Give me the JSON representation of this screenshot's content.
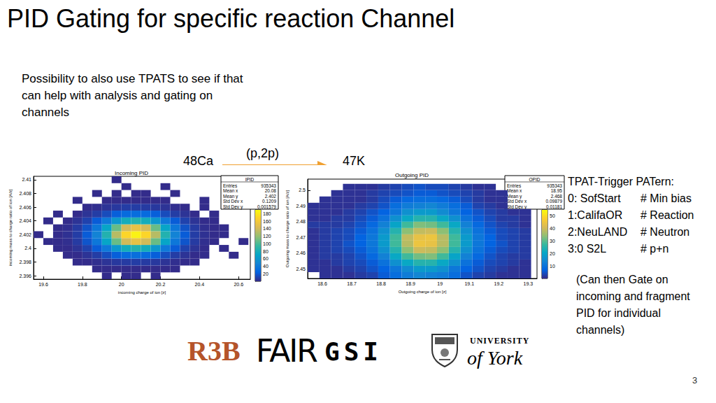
{
  "slide": {
    "title": "PID Gating for specific reaction Channel",
    "note_lines": [
      "Possibility to also use TPATS to see if that",
      "can help with analysis and gating on",
      "channels"
    ],
    "reaction": {
      "from": "48Ca",
      "label": "(p,2p)",
      "to": "47K"
    },
    "tpat": {
      "heading": "TPAT-Trigger PATern:",
      "items": [
        {
          "code": "0: SofStart",
          "comment": "# Min bias"
        },
        {
          "code": "1:CalifaOR",
          "comment": "# Reaction"
        },
        {
          "code": "2:NeuLAND",
          "comment": "# Neutron"
        },
        {
          "code": "3:0 S2L",
          "comment": "# p+n"
        }
      ]
    },
    "gating_note_lines": [
      "(Can then Gate on",
      "incoming and fragment",
      "PID for individual",
      "channels)"
    ],
    "logos": {
      "r3b": "R3B",
      "fair": "FAIR",
      "gsi": "GSI",
      "university": "UNIVERSITY",
      "york": "of York"
    },
    "page_number": 3
  },
  "chart_data": [
    {
      "type": "heatmap",
      "title": "Incoming PID",
      "x_label": "incoming charge of ion [z]",
      "y_label": "incoming mass to charge ratio of ion [A/z]",
      "xlim": [
        19.55,
        20.66
      ],
      "xticks": [
        19.6,
        19.8,
        20,
        20.2,
        20.4,
        20.6
      ],
      "ylim": [
        2.3955,
        2.4105
      ],
      "yticks": [
        2.396,
        2.398,
        2.4,
        2.402,
        2.404,
        2.406,
        2.408,
        2.41
      ],
      "grid": false,
      "xbins": [
        19.55,
        19.6,
        19.65,
        19.7,
        19.75,
        19.8,
        19.85,
        19.9,
        19.95,
        20,
        20.05,
        20.1,
        20.15,
        20.2,
        20.25,
        20.3,
        20.35,
        20.4,
        20.45,
        20.5,
        20.55,
        20.6,
        20.65
      ],
      "ybins": [
        2.3955,
        2.3965,
        2.3975,
        2.3985,
        2.3995,
        2.4005,
        2.4015,
        2.4025,
        2.4035,
        2.4045,
        2.4055,
        2.4065,
        2.4075,
        2.4085,
        2.4095,
        2.4105
      ],
      "cells": [
        [
          0,
          0,
          0,
          0,
          0,
          0,
          0,
          1,
          0,
          1,
          1,
          0,
          1,
          0,
          0,
          0,
          0,
          0,
          0,
          0,
          0,
          0
        ],
        [
          0,
          0,
          0,
          0,
          0,
          0,
          1,
          1,
          1,
          1,
          1,
          1,
          1,
          1,
          1,
          0,
          0,
          0,
          0,
          0,
          0,
          0
        ],
        [
          0,
          0,
          0,
          0,
          1,
          1,
          2,
          4,
          6,
          7,
          8,
          7,
          6,
          4,
          2,
          1,
          1,
          0,
          0,
          0,
          0,
          0
        ],
        [
          0,
          0,
          0,
          1,
          1,
          4,
          8,
          15,
          22,
          29,
          32,
          29,
          22,
          15,
          8,
          4,
          1,
          1,
          0,
          0,
          1,
          0
        ],
        [
          0,
          0,
          1,
          1,
          4,
          10,
          21,
          39,
          60,
          78,
          85,
          78,
          60,
          39,
          21,
          10,
          4,
          1,
          0,
          1,
          0,
          0
        ],
        [
          0,
          1,
          1,
          2,
          7,
          18,
          38,
          70,
          108,
          140,
          152,
          140,
          108,
          70,
          38,
          18,
          7,
          2,
          1,
          0,
          0,
          1
        ],
        [
          1,
          0,
          1,
          3,
          8,
          21,
          46,
          85,
          131,
          170,
          185,
          170,
          131,
          85,
          46,
          21,
          8,
          3,
          1,
          1,
          0,
          0
        ],
        [
          0,
          0,
          1,
          2,
          7,
          17,
          38,
          70,
          108,
          140,
          152,
          140,
          108,
          70,
          38,
          17,
          7,
          2,
          1,
          1,
          0,
          0
        ],
        [
          0,
          1,
          0,
          1,
          4,
          10,
          21,
          39,
          60,
          78,
          85,
          78,
          60,
          39,
          21,
          10,
          4,
          1,
          1,
          0,
          0,
          0
        ],
        [
          0,
          0,
          1,
          0,
          1,
          4,
          8,
          14,
          22,
          29,
          31,
          29,
          22,
          14,
          8,
          4,
          1,
          0,
          1,
          0,
          0,
          0
        ],
        [
          0,
          0,
          0,
          0,
          0,
          1,
          2,
          4,
          6,
          8,
          8,
          7,
          6,
          4,
          2,
          1,
          0,
          1,
          0,
          0,
          0,
          0
        ],
        [
          0,
          0,
          0,
          0,
          1,
          0,
          0,
          1,
          1,
          1,
          1,
          1,
          1,
          1,
          0,
          0,
          0,
          1,
          0,
          0,
          0,
          0
        ],
        [
          0,
          0,
          0,
          0,
          0,
          0,
          1,
          0,
          1,
          0,
          1,
          1,
          0,
          0,
          1,
          0,
          0,
          0,
          0,
          0,
          0,
          0
        ],
        [
          0,
          0,
          0,
          0,
          0,
          0,
          0,
          0,
          0,
          1,
          0,
          0,
          0,
          1,
          0,
          0,
          0,
          0,
          0,
          0,
          0,
          0
        ],
        [
          0,
          0,
          0,
          0,
          0,
          0,
          0,
          0,
          1,
          0,
          0,
          0,
          0,
          0,
          0,
          0,
          0,
          0,
          0,
          0,
          0,
          0
        ]
      ],
      "zlim": [
        0,
        190
      ],
      "zticks": [
        20,
        40,
        60,
        80,
        100,
        120,
        140,
        160,
        180
      ],
      "stats": {
        "title": "IPID",
        "rows": [
          {
            "label": "Entries",
            "value": 935343
          },
          {
            "label": "Mean x",
            "value": 20.08
          },
          {
            "label": "Mean y",
            "value": 2.402
          },
          {
            "label": "Std Dev x",
            "value": 0.1209
          },
          {
            "label": "Std Dev y",
            "value": 0.001579
          }
        ]
      }
    },
    {
      "type": "heatmap",
      "title": "Outgoing PID",
      "x_label": "Outgoing charge of ion [z]",
      "y_label": "Outgoing mass to charge ratio of ion [A/z]",
      "xlim": [
        18.55,
        19.33
      ],
      "xticks": [
        18.6,
        18.7,
        18.8,
        18.9,
        19,
        19.1,
        19.2,
        19.3
      ],
      "ylim": [
        2.444,
        2.507
      ],
      "yticks": [
        2.45,
        2.46,
        2.47,
        2.48,
        2.49,
        2.5
      ],
      "grid": false,
      "xbins": [
        18.55,
        18.59,
        18.63,
        18.67,
        18.71,
        18.75,
        18.79,
        18.83,
        18.87,
        18.91,
        18.95,
        18.99,
        19.03,
        19.07,
        19.11,
        19.15,
        19.19,
        19.23,
        19.27,
        19.31
      ],
      "ybins": [
        2.444,
        2.448,
        2.452,
        2.456,
        2.46,
        2.464,
        2.468,
        2.472,
        2.476,
        2.48,
        2.484,
        2.488,
        2.492,
        2.496,
        2.5,
        2.504
      ],
      "cells": [
        [
          0,
          1,
          1,
          1,
          2,
          3,
          6,
          9,
          12,
          14,
          13,
          12,
          9,
          5,
          3,
          2,
          1,
          1,
          1
        ],
        [
          1,
          1,
          1,
          2,
          3,
          5,
          7,
          11,
          15,
          18,
          18,
          16,
          11,
          7,
          5,
          3,
          2,
          1,
          1
        ],
        [
          1,
          1,
          2,
          3,
          4,
          6,
          10,
          16,
          21,
          25,
          25,
          21,
          16,
          10,
          6,
          4,
          3,
          2,
          1
        ],
        [
          1,
          2,
          2,
          3,
          5,
          8,
          13,
          21,
          28,
          32,
          33,
          28,
          20,
          13,
          8,
          5,
          3,
          2,
          2
        ],
        [
          1,
          2,
          3,
          4,
          6,
          10,
          16,
          25,
          34,
          40,
          39,
          34,
          25,
          16,
          10,
          6,
          4,
          3,
          2
        ],
        [
          1,
          2,
          3,
          5,
          7,
          11,
          18,
          28,
          38,
          45,
          44,
          38,
          28,
          18,
          11,
          7,
          5,
          3,
          2
        ],
        [
          1,
          2,
          3,
          4,
          7,
          11,
          18,
          28,
          39,
          44,
          45,
          38,
          28,
          18,
          11,
          7,
          4,
          3,
          2
        ],
        [
          1,
          2,
          3,
          4,
          6,
          10,
          16,
          25,
          34,
          39,
          40,
          34,
          25,
          16,
          10,
          6,
          4,
          3,
          2
        ],
        [
          2,
          2,
          2,
          3,
          5,
          8,
          13,
          20,
          28,
          33,
          32,
          28,
          21,
          13,
          8,
          5,
          3,
          2,
          1
        ],
        [
          1,
          1,
          2,
          2,
          4,
          6,
          10,
          16,
          21,
          25,
          25,
          21,
          16,
          10,
          6,
          4,
          2,
          2,
          1
        ],
        [
          1,
          1,
          1,
          2,
          3,
          5,
          7,
          11,
          16,
          18,
          18,
          15,
          11,
          7,
          5,
          3,
          2,
          1,
          1
        ],
        [
          1,
          1,
          1,
          1,
          2,
          3,
          5,
          9,
          12,
          13,
          14,
          12,
          9,
          6,
          3,
          2,
          1,
          0,
          0
        ],
        [
          0,
          1,
          1,
          1,
          1,
          2,
          4,
          6,
          8,
          9,
          9,
          8,
          6,
          4,
          2,
          1,
          1,
          0,
          0
        ],
        [
          0,
          0,
          1,
          1,
          1,
          2,
          3,
          4,
          5,
          6,
          6,
          5,
          4,
          3,
          2,
          1,
          1,
          0,
          0
        ],
        [
          0,
          0,
          0,
          1,
          1,
          1,
          2,
          3,
          4,
          5,
          4,
          4,
          3,
          2,
          1,
          1,
          0,
          0,
          0
        ]
      ],
      "zlim": [
        0,
        55
      ],
      "zticks": [
        10,
        20,
        30,
        40,
        50
      ],
      "stats": {
        "title": "OPID",
        "rows": [
          {
            "label": "Entries",
            "value": 935343
          },
          {
            "label": "Mean x",
            "value": 18.95
          },
          {
            "label": "Mean y",
            "value": 2.468
          },
          {
            "label": "Std Dev x",
            "value": 0.09879
          },
          {
            "label": "Std Dev y",
            "value": 0.01181
          }
        ]
      }
    }
  ]
}
